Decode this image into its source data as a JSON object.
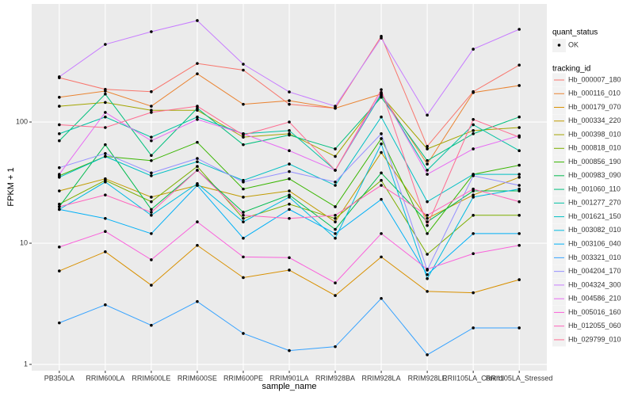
{
  "chart_data": {
    "type": "line",
    "x_label": "sample_name",
    "y_label": "FPKM + 1",
    "log_y": true,
    "grid": true,
    "categories": [
      "PB350LA",
      "RRIM600LA",
      "RRIM600LE",
      "RRIM600SE",
      "RRIM600PE",
      "RRIM901LA",
      "RRIM928BA",
      "RRIM928LA",
      "RRIM928LE",
      "RRII105LA_Control",
      "RRII105LA_Stressed"
    ],
    "ylim": [
      0.887,
      942
    ],
    "yticks": [
      1,
      10,
      100
    ],
    "point_legend": {
      "title": "quant_status",
      "entries": [
        "OK"
      ]
    },
    "legend_title": "tracking_id",
    "series": [
      {
        "name": "Hb_000007_180",
        "color": "#F8766D",
        "values": [
          232,
          186,
          178,
          304,
          268,
          140,
          130,
          510,
          63,
          178,
          295
        ]
      },
      {
        "name": "Hb_000116_010",
        "color": "#EA8331",
        "values": [
          160,
          180,
          135,
          250,
          140,
          150,
          130,
          170,
          45,
          175,
          200
        ]
      },
      {
        "name": "Hb_000179_070",
        "color": "#D89000",
        "values": [
          5.9,
          8.5,
          4.5,
          9.6,
          5.2,
          6,
          3.7,
          7.7,
          4,
          3.9,
          5
        ]
      },
      {
        "name": "Hb_000334_220",
        "color": "#C09B00",
        "values": [
          27,
          34,
          24,
          30,
          24,
          27,
          15,
          56,
          16,
          25,
          35
        ]
      },
      {
        "name": "Hb_000398_010",
        "color": "#A3A500",
        "values": [
          135,
          145,
          125,
          125,
          75,
          80,
          52,
          165,
          60,
          85,
          90
        ]
      },
      {
        "name": "Hb_000818_010",
        "color": "#7CAE00",
        "values": [
          21,
          33,
          22,
          43,
          16,
          21,
          16,
          33,
          8.1,
          17,
          17
        ]
      },
      {
        "name": "Hb_000856_190",
        "color": "#39B600",
        "values": [
          36,
          52,
          48,
          68,
          28,
          34,
          20,
          73,
          12,
          37,
          44
        ]
      },
      {
        "name": "Hb_000983_090",
        "color": "#00BB4E",
        "values": [
          20,
          65,
          19,
          40,
          18,
          25,
          13,
          38,
          15,
          27,
          27
        ]
      },
      {
        "name": "Hb_001060_110",
        "color": "#00BF7D",
        "values": [
          70,
          170,
          53,
          130,
          65,
          78,
          60,
          160,
          48,
          80,
          110
        ]
      },
      {
        "name": "Hb_001277_270",
        "color": "#00C1A3",
        "values": [
          80,
          110,
          75,
          110,
          80,
          85,
          40,
          170,
          40,
          95,
          58
        ]
      },
      {
        "name": "Hb_001621_150",
        "color": "#00BFC4",
        "values": [
          35,
          52,
          36,
          47,
          33,
          45,
          30,
          110,
          22,
          37,
          37
        ]
      },
      {
        "name": "Hb_003082_010",
        "color": "#00BAE0",
        "values": [
          19,
          32,
          17,
          31,
          15,
          24,
          11,
          66,
          5.1,
          24,
          28
        ]
      },
      {
        "name": "Hb_003106_040",
        "color": "#00B0F6",
        "values": [
          19,
          16,
          12,
          30,
          11,
          19,
          12,
          23,
          5.5,
          12,
          12
        ]
      },
      {
        "name": "Hb_003321_010",
        "color": "#35A2FF",
        "values": [
          2.2,
          3.1,
          2.1,
          3.3,
          1.8,
          1.3,
          1.4,
          3.5,
          1.2,
          2,
          2
        ]
      },
      {
        "name": "Hb_004204_170",
        "color": "#9590FF",
        "values": [
          42,
          55,
          38,
          50,
          32,
          39,
          32,
          80,
          6,
          36,
          30
        ]
      },
      {
        "name": "Hb_004324_300",
        "color": "#C77CFF",
        "values": [
          236,
          437,
          556,
          687,
          300,
          177,
          135,
          493,
          114,
          399,
          582
        ]
      },
      {
        "name": "Hb_004586_210",
        "color": "#E76BF3",
        "values": [
          37,
          120,
          70,
          105,
          80,
          58,
          40,
          175,
          37,
          60,
          77
        ]
      },
      {
        "name": "Hb_005016_160",
        "color": "#FA62DB",
        "values": [
          9.3,
          12.5,
          7.3,
          15,
          7.7,
          7.6,
          4.7,
          12,
          6.1,
          8.2,
          9.6
        ]
      },
      {
        "name": "Hb_012055_060",
        "color": "#FF62BC",
        "values": [
          20,
          25,
          18,
          40,
          17,
          16,
          17,
          30,
          17,
          28,
          22
        ]
      },
      {
        "name": "Hb_029799_010",
        "color": "#FF6C91",
        "values": [
          95,
          90,
          120,
          135,
          78,
          100,
          40,
          185,
          14,
          105,
          75
        ]
      }
    ]
  }
}
